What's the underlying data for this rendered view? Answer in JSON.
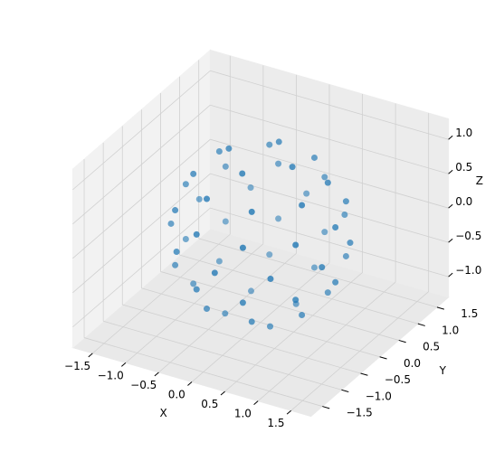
{
  "chart_data": {
    "type": "scatter3d",
    "color": "#1f77b4",
    "x": [
      0.48,
      0,
      -0.48,
      0,
      0.82,
      0.34,
      -0.34,
      -0.82,
      -0.82,
      -0.34,
      0.34,
      0.82,
      1.13,
      0.91,
      0.35,
      -0.35,
      -0.91,
      -1.13,
      -0.91,
      -0.35,
      0.35,
      0.91,
      1.14,
      0.71,
      0,
      -0.71,
      -1.14,
      -1.14,
      -0.71,
      0,
      0.71,
      1.14,
      1.13,
      0.91,
      0.35,
      -0.35,
      -0.91,
      -1.13,
      -0.91,
      -0.35,
      0.35,
      0.91,
      0.82,
      0.34,
      -0.34,
      -0.82,
      -0.82,
      -0.34,
      0.34,
      0.82,
      0.34,
      -0.34,
      -0.34,
      0.34
    ],
    "y": [
      0,
      0.48,
      0,
      -0.48,
      0.34,
      0.82,
      0.82,
      0.34,
      -0.34,
      -0.82,
      -0.82,
      -0.34,
      0,
      0.66,
      1.07,
      1.07,
      0.66,
      0,
      -0.66,
      -1.07,
      -1.07,
      -0.66,
      0.37,
      0.97,
      1.2,
      0.97,
      0.37,
      -0.37,
      -0.97,
      -1.2,
      -0.97,
      -0.37,
      0,
      0.66,
      1.07,
      1.07,
      0.66,
      0,
      -0.66,
      -1.07,
      -1.07,
      -0.66,
      0.34,
      0.82,
      0.82,
      0.34,
      -0.34,
      -0.82,
      -0.82,
      -0.34,
      0.34,
      0.34,
      -0.34,
      -0.34
    ],
    "z": [
      1.1,
      1.1,
      1.1,
      1.1,
      0.8,
      0.8,
      0.8,
      0.8,
      0.8,
      0.8,
      0.8,
      0.8,
      0.4,
      0.4,
      0.4,
      0.4,
      0.4,
      0.4,
      0.4,
      0.4,
      0.4,
      0.4,
      0,
      0,
      0,
      0,
      0,
      0,
      0,
      0,
      0,
      0,
      -0.4,
      -0.4,
      -0.4,
      -0.4,
      -0.4,
      -0.4,
      -0.4,
      -0.4,
      -0.4,
      -0.4,
      -0.8,
      -0.8,
      -0.8,
      -0.8,
      -0.8,
      -0.8,
      -0.8,
      -0.8,
      -1.1,
      -1.1,
      -1.1,
      -1.1
    ],
    "xlabel": "X",
    "ylabel": "Y",
    "zlabel": "Z",
    "xlim": [
      -1.8,
      1.8
    ],
    "ylim": [
      -1.8,
      1.8
    ],
    "zlim": [
      -1.3,
      1.3
    ],
    "xticks": [
      {
        "value": -1.5,
        "label": "−1.5"
      },
      {
        "value": -1,
        "label": "−1.0"
      },
      {
        "value": -0.5,
        "label": "−0.5"
      },
      {
        "value": 0,
        "label": "0.0"
      },
      0.5,
      {
        "value": 1,
        "label": "1.0"
      },
      1.5
    ],
    "yticks": [
      {
        "value": -1.5,
        "label": "−1.5"
      },
      {
        "value": -1,
        "label": "−1.0"
      },
      {
        "value": -0.5,
        "label": "−0.5"
      },
      {
        "value": 0,
        "label": "0.0"
      },
      0.5,
      {
        "value": 1,
        "label": "1.0"
      },
      1.5
    ],
    "zticks": [
      {
        "value": -1,
        "label": "−1.0"
      },
      {
        "value": -0.5,
        "label": "−0.5"
      },
      {
        "value": 0,
        "label": "0.0"
      },
      0.5,
      {
        "value": 1,
        "label": "1.0"
      }
    ],
    "grid": true
  }
}
